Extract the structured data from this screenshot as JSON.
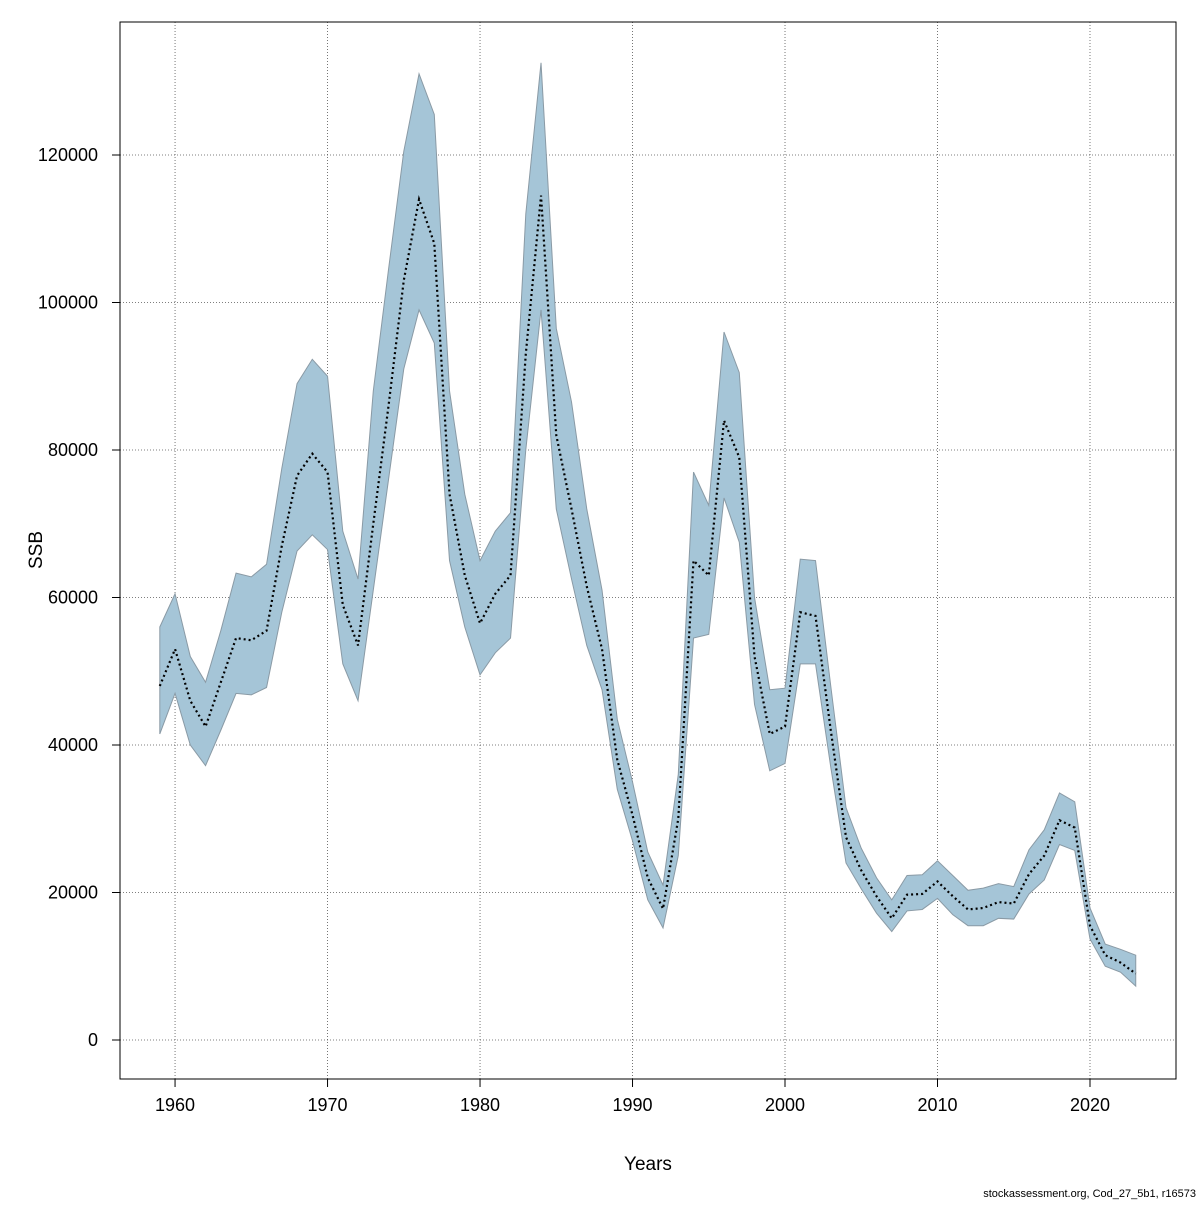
{
  "chart_data": {
    "type": "line",
    "xlabel": "Years",
    "ylabel": "SSB",
    "footnote": "stockassessment.org, Cod_27_5b1, r16573",
    "x": [
      1959,
      1960,
      1961,
      1962,
      1963,
      1964,
      1965,
      1966,
      1967,
      1968,
      1969,
      1970,
      1971,
      1972,
      1973,
      1974,
      1975,
      1976,
      1977,
      1978,
      1979,
      1980,
      1981,
      1982,
      1983,
      1984,
      1985,
      1986,
      1987,
      1988,
      1989,
      1990,
      1991,
      1992,
      1993,
      1994,
      1995,
      1996,
      1997,
      1998,
      1999,
      2000,
      2001,
      2002,
      2003,
      2004,
      2005,
      2006,
      2007,
      2008,
      2009,
      2010,
      2011,
      2012,
      2013,
      2014,
      2015,
      2016,
      2017,
      2018,
      2019,
      2020,
      2021,
      2022,
      2023
    ],
    "values": [
      48000,
      53000,
      46000,
      42500,
      48500,
      54500,
      54200,
      55500,
      67000,
      76500,
      79500,
      77000,
      59000,
      53500,
      70000,
      86000,
      103000,
      114000,
      108000,
      74000,
      63000,
      56500,
      60500,
      63000,
      93000,
      114500,
      82000,
      72000,
      61500,
      53000,
      38000,
      30500,
      22000,
      17800,
      30000,
      65000,
      63000,
      84000,
      79000,
      52000,
      41500,
      42500,
      58000,
      57500,
      42000,
      27500,
      23000,
      19500,
      16500,
      19700,
      19800,
      21500,
      19500,
      17700,
      17900,
      18700,
      18500,
      22500,
      25000,
      29800,
      28800,
      15500,
      11500,
      10500,
      9000
    ],
    "lower": [
      41500,
      47000,
      40000,
      37200,
      42000,
      47000,
      46800,
      47800,
      58000,
      66300,
      68500,
      66500,
      51000,
      46000,
      61000,
      76000,
      91000,
      99000,
      94500,
      65000,
      56000,
      49500,
      52500,
      54500,
      80000,
      99000,
      72000,
      62500,
      53500,
      47500,
      34000,
      27000,
      19000,
      15200,
      25000,
      54500,
      55000,
      73500,
      67500,
      45500,
      36500,
      37500,
      51000,
      51000,
      37000,
      24000,
      20500,
      17200,
      14700,
      17500,
      17700,
      19200,
      17000,
      15500,
      15500,
      16500,
      16400,
      19800,
      21700,
      26500,
      25700,
      13700,
      10000,
      9200,
      7300
    ],
    "upper": [
      56000,
      60500,
      52000,
      48500,
      55500,
      63300,
      62800,
      64500,
      77500,
      89000,
      92300,
      90000,
      69000,
      62500,
      88000,
      104500,
      120500,
      131000,
      125500,
      88000,
      74000,
      65000,
      69000,
      71500,
      112000,
      132500,
      96500,
      86500,
      72000,
      61000,
      43500,
      35000,
      25500,
      21000,
      36000,
      77000,
      72500,
      96000,
      90500,
      60000,
      47500,
      47700,
      65200,
      65000,
      48000,
      31500,
      26000,
      22000,
      19000,
      22300,
      22400,
      24300,
      22300,
      20300,
      20600,
      21200,
      20800,
      25800,
      28500,
      33500,
      32300,
      17900,
      13000,
      12300,
      11500
    ],
    "color": "#000000",
    "band_color": "#a5c5d7",
    "line_style": "dotted",
    "xlim": [
      1956.39,
      2025.64
    ],
    "ylim": [
      -5288,
      138034
    ],
    "xticks": [
      1960,
      1970,
      1980,
      1990,
      2000,
      2010,
      2020
    ],
    "yticks": [
      0,
      20000,
      40000,
      60000,
      80000,
      100000,
      120000
    ],
    "grid": true
  }
}
